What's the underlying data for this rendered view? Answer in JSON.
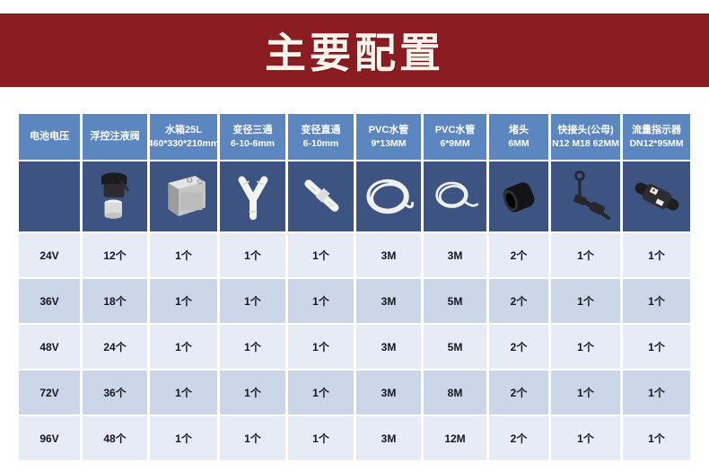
{
  "banner": {
    "title": "主要配置"
  },
  "colors": {
    "banner_red": "#8b1d22",
    "header_blue": "#5b86c0",
    "image_row_navy": "#3d5381",
    "row_light": "#e7ebf5",
    "row_dark": "#ccd6e9"
  },
  "table": {
    "columns": [
      {
        "name": "电池电压",
        "spec": "",
        "icon": ""
      },
      {
        "name": "浮控注液阀",
        "spec": "",
        "icon": "float-valve"
      },
      {
        "name": "水箱25L",
        "spec": "460*330*210mm",
        "icon": "water-tank"
      },
      {
        "name": "变径三通",
        "spec": "6-10-6mm",
        "icon": "reducing-tee"
      },
      {
        "name": "变径直通",
        "spec": "6-10mm",
        "icon": "straight-connector"
      },
      {
        "name": "PVC水管",
        "spec": "9*13MM",
        "icon": "pvc-tube-coil-large"
      },
      {
        "name": "PVC水管",
        "spec": "6*9MM",
        "icon": "pvc-tube-coil-small"
      },
      {
        "name": "堵头",
        "spec": "6MM",
        "icon": "plug"
      },
      {
        "name": "快接头(公母)",
        "spec": "N12 M18 62MM",
        "icon": "quick-connector"
      },
      {
        "name": "流量指示器",
        "spec": "DN12*95MM",
        "icon": "flow-indicator"
      }
    ],
    "rows": [
      {
        "voltage": "24V",
        "values": [
          "12个",
          "1个",
          "1个",
          "1个",
          "3M",
          "3M",
          "2个",
          "1个",
          "1个"
        ]
      },
      {
        "voltage": "36V",
        "values": [
          "18个",
          "1个",
          "1个",
          "1个",
          "3M",
          "5M",
          "2个",
          "1个",
          "1个"
        ]
      },
      {
        "voltage": "48V",
        "values": [
          "24个",
          "1个",
          "1个",
          "1个",
          "3M",
          "5M",
          "2个",
          "1个",
          "1个"
        ]
      },
      {
        "voltage": "72V",
        "values": [
          "36个",
          "1个",
          "1个",
          "1个",
          "3M",
          "8M",
          "2个",
          "1个",
          "1个"
        ]
      },
      {
        "voltage": "96V",
        "values": [
          "48个",
          "1个",
          "1个",
          "1个",
          "3M",
          "12M",
          "2个",
          "1个",
          "1个"
        ]
      }
    ]
  }
}
